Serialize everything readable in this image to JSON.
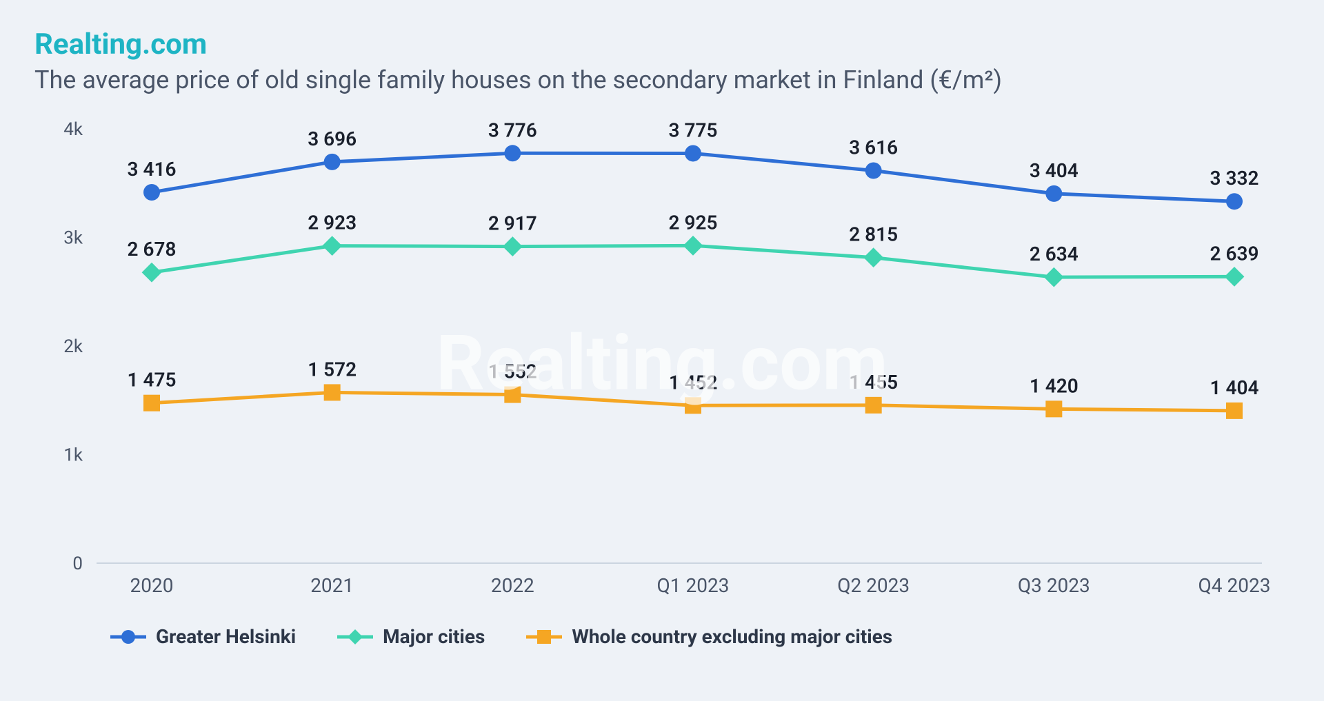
{
  "brand": "Realting.com",
  "brand_color": "#1eb4c4",
  "subtitle": "The average price of old single family houses on the secondary market in Finland (€/m²)",
  "subtitle_color": "#4a5568",
  "watermark": "Realting.com",
  "background_color": "#eef2f7",
  "chart": {
    "type": "line",
    "categories": [
      "2020",
      "2021",
      "2022",
      "Q1 2023",
      "Q2 2023",
      "Q3 2023",
      "Q4 2023"
    ],
    "ylim": [
      0,
      4000
    ],
    "yticks": [
      0,
      1000,
      2000,
      3000,
      4000
    ],
    "ytick_labels": [
      "0",
      "1k",
      "2k",
      "3k",
      "4k"
    ],
    "axis_color": "#cbd5e0",
    "axis_label_color": "#4a5568",
    "tick_fontsize": 26,
    "xlabel_fontsize": 28,
    "line_width": 5,
    "marker_size": 12,
    "datalabel_fontsize": 28,
    "datalabel_color": "#1a202c",
    "series": [
      {
        "name": "Greater Helsinki",
        "color": "#2e6fd6",
        "marker": "circle",
        "values": [
          3416,
          3696,
          3776,
          3775,
          3616,
          3404,
          3332
        ],
        "labels": [
          "3 416",
          "3 696",
          "3 776",
          "3 775",
          "3 616",
          "3 404",
          "3 332"
        ]
      },
      {
        "name": "Major cities",
        "color": "#3fd4b0",
        "marker": "diamond",
        "values": [
          2678,
          2923,
          2917,
          2925,
          2815,
          2634,
          2639
        ],
        "labels": [
          "2 678",
          "2 923",
          "2 917",
          "2 925",
          "2 815",
          "2 634",
          "2 639"
        ]
      },
      {
        "name": "Whole country excluding major cities",
        "color": "#f5a623",
        "marker": "square",
        "values": [
          1475,
          1572,
          1552,
          1452,
          1455,
          1420,
          1404
        ],
        "labels": [
          "1 475",
          "1 572",
          "1 552",
          "1 452",
          "1 455",
          "1 420",
          "1 404"
        ]
      }
    ]
  }
}
